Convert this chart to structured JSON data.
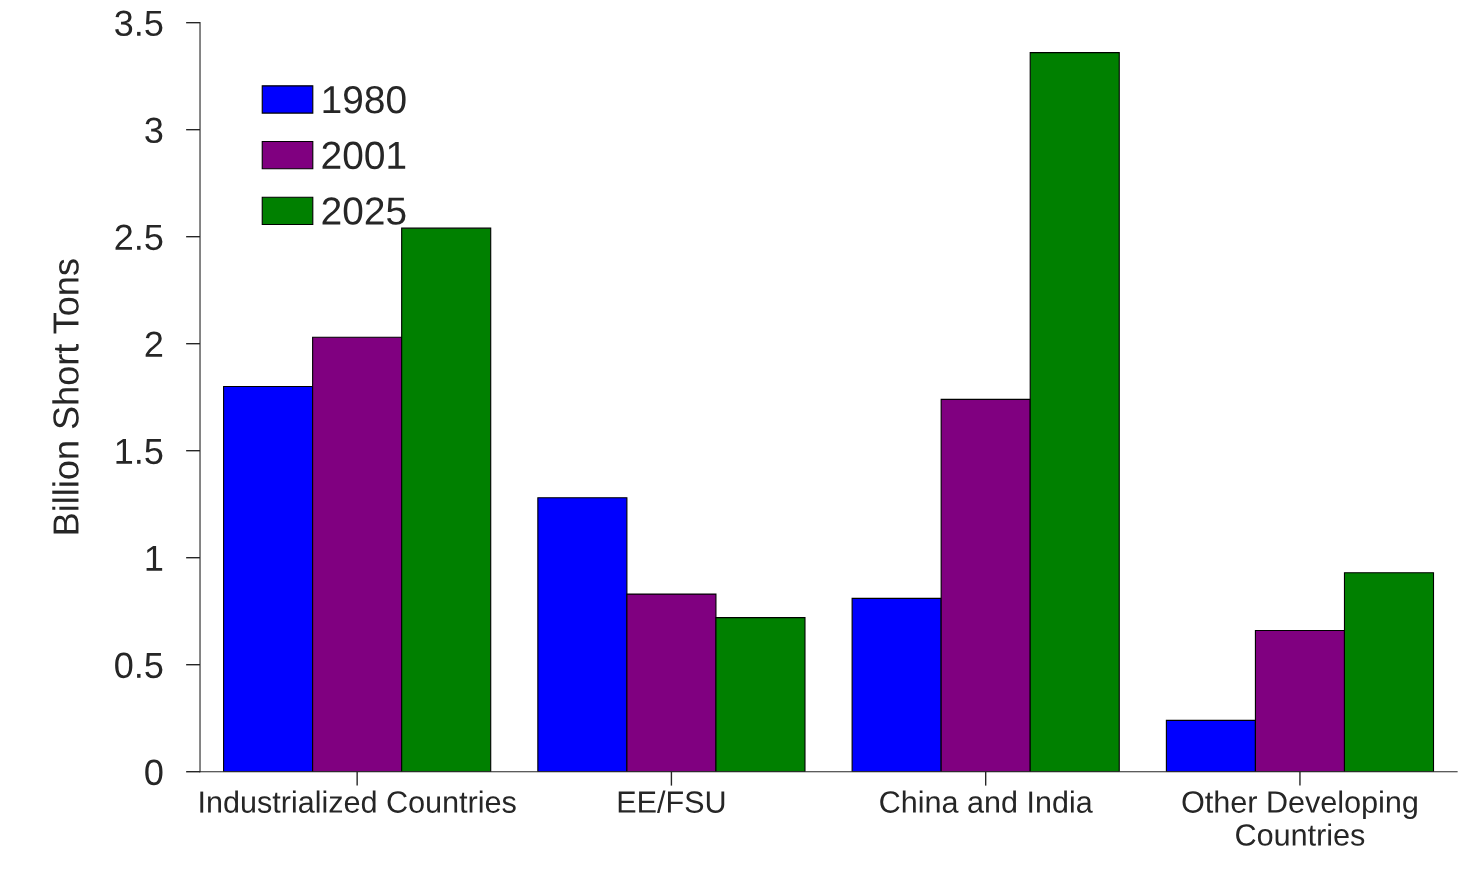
{
  "chart_data": {
    "type": "bar",
    "ylabel": "Billion Short Tons",
    "categories": [
      "Industrialized Countries",
      "EE/FSU",
      "China and India",
      "Other Developing\nCountries"
    ],
    "series": [
      {
        "name": "1980",
        "color": "#0000ff",
        "values": [
          1.8,
          1.28,
          0.81,
          0.24
        ]
      },
      {
        "name": "2001",
        "color": "#800080",
        "values": [
          2.03,
          0.83,
          1.74,
          0.66
        ]
      },
      {
        "name": "2025",
        "color": "#008000",
        "values": [
          2.54,
          0.72,
          3.36,
          0.93
        ]
      }
    ],
    "ylim": [
      0,
      3.5
    ],
    "yticks": [
      0,
      0.5,
      1,
      1.5,
      2,
      2.5,
      3,
      3.5
    ],
    "grid": false,
    "legend": "top left"
  }
}
